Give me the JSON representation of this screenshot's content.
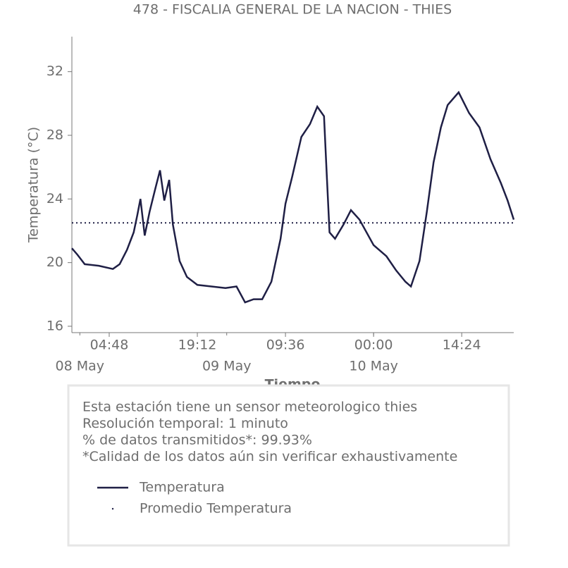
{
  "chart_data": {
    "type": "line",
    "title": "478 - FISCALIA GENERAL DE LA NACION - THIES",
    "xlabel": "Tiempo",
    "ylabel": "Temperatura (°C)",
    "x": [
      -1.3,
      -0.4,
      0.8,
      3.1,
      5.4,
      6.5,
      7.7,
      8.8,
      9.4,
      9.9,
      10.6,
      11.4,
      12.3,
      13.1,
      13.8,
      14.6,
      15.2,
      16.3,
      17.5,
      19.2,
      21.5,
      23.8,
      25.6,
      27.0,
      28.4,
      29.8,
      31.3,
      32.8,
      33.6,
      34.7,
      36.2,
      37.6,
      38.8,
      39.9,
      40.3,
      40.8,
      41.7,
      43.1,
      44.3,
      45.7,
      48.0,
      50.1,
      51.7,
      53.2,
      54.1,
      55.5,
      56.7,
      57.8,
      59.0,
      60.1,
      61.9,
      63.6,
      65.3,
      67.1,
      68.8,
      69.9,
      70.9
    ],
    "series": [
      {
        "name": "Temperatura",
        "color": "#1f1f45",
        "values": [
          20.9,
          20.5,
          19.9,
          19.8,
          19.6,
          19.9,
          20.8,
          21.9,
          23.0,
          24.0,
          21.7,
          23.2,
          24.6,
          25.8,
          23.9,
          25.2,
          22.4,
          20.1,
          19.1,
          18.6,
          18.5,
          18.4,
          18.5,
          17.5,
          17.7,
          17.7,
          18.8,
          21.5,
          23.7,
          25.4,
          27.9,
          28.7,
          29.8,
          29.2,
          25.9,
          21.9,
          21.5,
          22.4,
          23.3,
          22.7,
          21.1,
          20.4,
          19.5,
          18.8,
          18.5,
          20.1,
          23.2,
          26.3,
          28.5,
          29.9,
          30.7,
          29.4,
          28.5,
          26.5,
          25.0,
          23.9,
          22.7
        ]
      }
    ],
    "mean_line": {
      "name": "Promedio Temperatura",
      "value": 22.5,
      "color": "#1f1f45"
    },
    "xlim": [
      -1.3,
      70.9
    ],
    "ylim": [
      15.6,
      34.2
    ],
    "xticks": [
      {
        "value": 4.8,
        "label": "04:48"
      },
      {
        "value": 19.2,
        "label": "19:12"
      },
      {
        "value": 33.6,
        "label": "09:36"
      },
      {
        "value": 48,
        "label": "00:00"
      },
      {
        "value": 62.4,
        "label": "14:24"
      }
    ],
    "date_ticks": [
      {
        "value": 0,
        "label": "08 May"
      },
      {
        "value": 24,
        "label": "09 May"
      },
      {
        "value": 48,
        "label": "10 May"
      }
    ],
    "yticks": [
      16,
      20,
      24,
      28,
      32
    ],
    "notes": [
      "Esta estación tiene un sensor meteorologico thies",
      "Resolución temporal: 1 minuto",
      "% de datos transmitidos*: 99.93%",
      "*Calidad de los datos aún sin verificar exhaustivamente"
    ]
  }
}
